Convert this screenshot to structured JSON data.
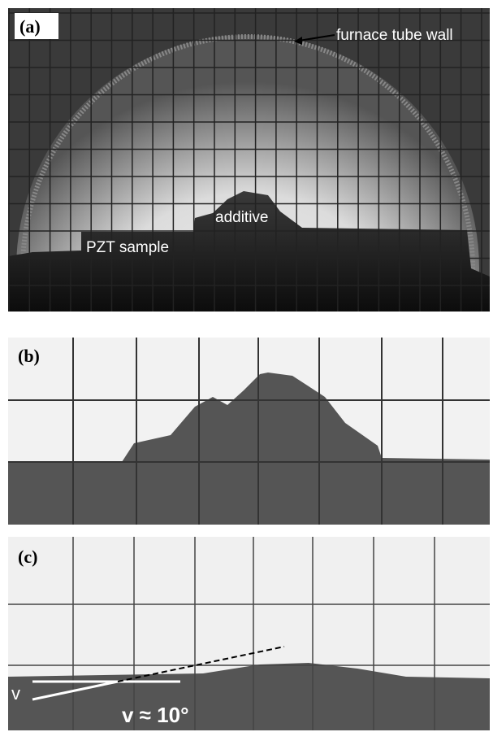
{
  "panels": [
    {
      "label": "(a)",
      "annotations": [
        "furnace tube wall",
        "additive",
        "PZT sample"
      ]
    },
    {
      "label": "(b)"
    },
    {
      "label": "(c)",
      "annotations": [
        "v",
        "v ≈ 10°"
      ]
    }
  ]
}
